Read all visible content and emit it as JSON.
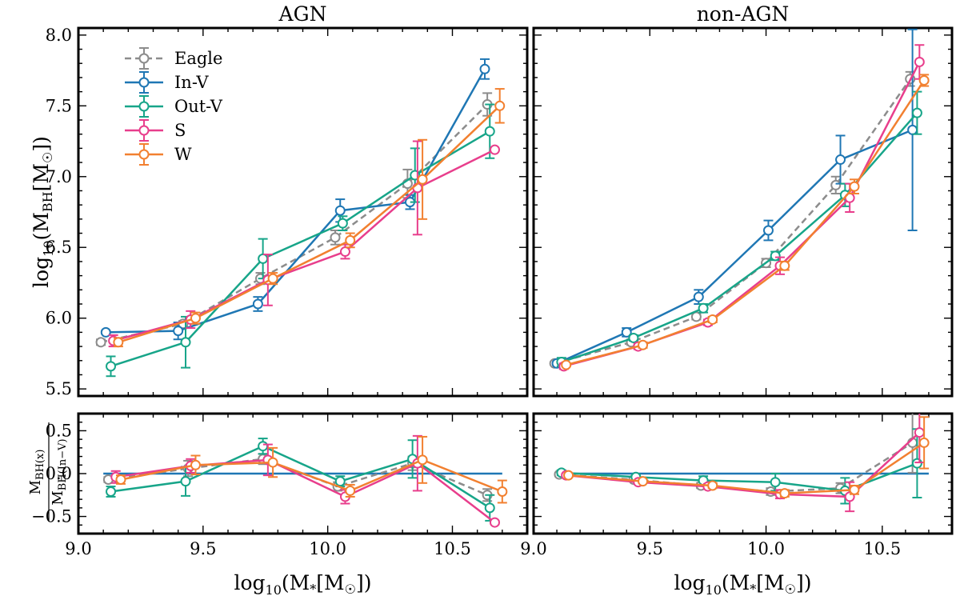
{
  "chart_data": [
    {
      "id": "agn-main",
      "type": "line",
      "title": "AGN",
      "xlabel": "",
      "ylabel": "log10(MBH[M☉])",
      "xlim": [
        9.0,
        10.8
      ],
      "ylim": [
        5.45,
        8.05
      ],
      "xticks": [
        9.0,
        9.5,
        10.0,
        10.5
      ],
      "xtick_labels": [
        "",
        "",
        "",
        ""
      ],
      "yticks": [
        5.5,
        6.0,
        6.5,
        7.0,
        7.5,
        8.0
      ],
      "ytick_labels": [
        "5.5",
        "6.0",
        "6.5",
        "7.0",
        "7.5",
        "8.0"
      ],
      "legend": "top-left",
      "series": [
        {
          "name": "Eagle",
          "color": "#8c8c8c",
          "dashed": true,
          "x": [
            9.09,
            9.42,
            9.73,
            10.03,
            10.32,
            10.64
          ],
          "y": [
            5.83,
            5.96,
            6.28,
            6.57,
            6.95,
            7.51
          ],
          "err": [
            0.02,
            0.02,
            0.04,
            0.05,
            0.1,
            0.08
          ]
        },
        {
          "name": "In-V",
          "color": "#1f77b4",
          "dashed": false,
          "x": [
            9.11,
            9.4,
            9.72,
            10.05,
            10.33,
            10.63
          ],
          "y": [
            5.9,
            5.91,
            6.1,
            6.76,
            6.82,
            7.76
          ],
          "err": [
            0.01,
            0.06,
            0.05,
            0.08,
            0.05,
            0.07
          ]
        },
        {
          "name": "Out-V",
          "color": "#17a589",
          "dashed": false,
          "x": [
            9.13,
            9.43,
            9.74,
            10.06,
            10.35,
            10.65
          ],
          "y": [
            5.66,
            5.83,
            6.42,
            6.67,
            7.01,
            7.32
          ],
          "err": [
            0.07,
            0.18,
            0.14,
            0.05,
            0.19,
            0.19
          ]
        },
        {
          "name": "S",
          "color": "#e83e8c",
          "dashed": false,
          "x": [
            9.14,
            9.45,
            9.76,
            10.07,
            10.36,
            10.67
          ],
          "y": [
            5.84,
            5.99,
            6.27,
            6.47,
            6.92,
            7.19
          ],
          "err": [
            0.04,
            0.06,
            0.18,
            0.05,
            0.33,
            0.01
          ]
        },
        {
          "name": "W",
          "color": "#f28030",
          "dashed": false,
          "x": [
            9.16,
            9.47,
            9.78,
            10.09,
            10.38,
            10.69
          ],
          "y": [
            5.83,
            6.0,
            6.28,
            6.55,
            6.98,
            7.5
          ],
          "err": [
            0.03,
            0.04,
            0.04,
            0.05,
            0.28,
            0.12
          ]
        }
      ]
    },
    {
      "id": "nonagn-main",
      "type": "line",
      "title": "non-AGN",
      "xlabel": "",
      "ylabel": "",
      "xlim": [
        9.0,
        10.8
      ],
      "ylim": [
        5.45,
        8.05
      ],
      "xticks": [
        9.0,
        9.5,
        10.0,
        10.5
      ],
      "xtick_labels": [
        "",
        "",
        "",
        ""
      ],
      "yticks": [
        5.5,
        6.0,
        6.5,
        7.0,
        7.5,
        8.0
      ],
      "ytick_labels": [
        "",
        "",
        "",
        "",
        "",
        ""
      ],
      "legend": "",
      "series": [
        {
          "name": "Eagle",
          "color": "#8c8c8c",
          "dashed": true,
          "x": [
            9.09,
            9.42,
            9.7,
            10.0,
            10.3,
            10.62
          ],
          "y": [
            5.68,
            5.83,
            6.01,
            6.39,
            6.94,
            7.69
          ],
          "err": [
            0.01,
            0.02,
            0.02,
            0.03,
            0.06,
            0.05
          ]
        },
        {
          "name": "In-V",
          "color": "#1f77b4",
          "dashed": false,
          "x": [
            9.1,
            9.4,
            9.71,
            10.01,
            10.32,
            10.63
          ],
          "y": [
            5.68,
            5.9,
            6.15,
            6.62,
            7.12,
            7.33
          ],
          "err": [
            0.01,
            0.03,
            0.05,
            0.07,
            0.17,
            0.71
          ]
        },
        {
          "name": "Out-V",
          "color": "#17a589",
          "dashed": false,
          "x": [
            9.12,
            9.43,
            9.73,
            10.04,
            10.34,
            10.65
          ],
          "y": [
            5.69,
            5.86,
            6.07,
            6.44,
            6.87,
            7.45
          ],
          "err": [
            0.03,
            0.02,
            0.03,
            0.03,
            0.08,
            0.15
          ]
        },
        {
          "name": "S",
          "color": "#e83e8c",
          "dashed": false,
          "x": [
            9.13,
            9.45,
            9.75,
            10.06,
            10.36,
            10.66
          ],
          "y": [
            5.66,
            5.8,
            5.97,
            6.37,
            6.85,
            7.81
          ],
          "err": [
            0.02,
            0.02,
            0.02,
            0.06,
            0.1,
            0.12
          ]
        },
        {
          "name": "W",
          "color": "#f28030",
          "dashed": false,
          "x": [
            9.14,
            9.47,
            9.77,
            10.08,
            10.38,
            10.68
          ],
          "y": [
            5.67,
            5.81,
            5.99,
            6.37,
            6.93,
            7.68
          ],
          "err": [
            0.01,
            0.02,
            0.02,
            0.03,
            0.05,
            0.04
          ]
        }
      ]
    },
    {
      "id": "agn-ratio",
      "type": "line",
      "title": "",
      "xlabel": "log10(M*[M☉])",
      "ylabel": "MBH(x) / MBH(In−V)",
      "xlim": [
        9.0,
        10.8
      ],
      "ylim": [
        -0.7,
        0.7
      ],
      "xticks": [
        9.0,
        9.5,
        10.0,
        10.5
      ],
      "xtick_labels": [
        "9.0",
        "9.5",
        "10.0",
        "10.5"
      ],
      "yticks": [
        -0.5,
        0.0,
        0.5
      ],
      "ytick_labels": [
        "−0.5",
        "0.0",
        "0.5"
      ],
      "legend": "",
      "series": [
        {
          "name": "In-V",
          "color": "#1f77b4",
          "dashed": false,
          "markers": false,
          "x": [
            9.1,
            10.7
          ],
          "y": [
            0.0,
            0.0
          ],
          "err": [
            0,
            0
          ]
        },
        {
          "name": "Eagle",
          "color": "#8c8c8c",
          "dashed": true,
          "x": [
            9.12,
            9.44,
            9.74,
            10.04,
            10.34,
            10.64
          ],
          "y": [
            -0.07,
            0.06,
            0.17,
            -0.15,
            0.12,
            -0.25
          ],
          "err": [
            0.03,
            0.09,
            0.06,
            0.05,
            0.08,
            0.07
          ]
        },
        {
          "name": "Out-V",
          "color": "#17a589",
          "dashed": false,
          "x": [
            9.13,
            9.43,
            9.74,
            10.05,
            10.34,
            10.65
          ],
          "y": [
            -0.21,
            -0.09,
            0.32,
            -0.09,
            0.17,
            -0.4
          ],
          "err": [
            0.06,
            0.17,
            0.09,
            0.06,
            0.22,
            0.15
          ]
        },
        {
          "name": "S",
          "color": "#e83e8c",
          "dashed": false,
          "x": [
            9.15,
            9.45,
            9.76,
            10.07,
            10.36,
            10.67
          ],
          "y": [
            -0.04,
            0.09,
            0.16,
            -0.27,
            0.12,
            -0.57
          ],
          "err": [
            0.07,
            0.08,
            0.18,
            0.08,
            0.32,
            0.02
          ]
        },
        {
          "name": "W",
          "color": "#f28030",
          "dashed": false,
          "x": [
            9.17,
            9.47,
            9.78,
            10.09,
            10.38,
            10.7
          ],
          "y": [
            -0.07,
            0.1,
            0.13,
            -0.2,
            0.16,
            -0.21
          ],
          "err": [
            0.05,
            0.11,
            0.17,
            0.07,
            0.27,
            0.13
          ]
        }
      ]
    },
    {
      "id": "nonagn-ratio",
      "type": "line",
      "title": "",
      "xlabel": "log10(M*[M☉])",
      "ylabel": "",
      "xlim": [
        9.0,
        10.8
      ],
      "ylim": [
        -0.7,
        0.7
      ],
      "xticks": [
        9.0,
        9.5,
        10.0,
        10.5
      ],
      "xtick_labels": [
        "9.0",
        "9.5",
        "10.0",
        "10.5"
      ],
      "yticks": [
        -0.5,
        0.0,
        0.5
      ],
      "ytick_labels": [
        "",
        "",
        ""
      ],
      "legend": "",
      "series": [
        {
          "name": "In-V",
          "color": "#1f77b4",
          "dashed": false,
          "markers": false,
          "x": [
            9.1,
            10.7
          ],
          "y": [
            0.0,
            0.0
          ],
          "err": [
            0,
            0
          ]
        },
        {
          "name": "Eagle",
          "color": "#8c8c8c",
          "dashed": true,
          "x": [
            9.11,
            9.43,
            9.72,
            10.02,
            10.32,
            10.63
          ],
          "y": [
            -0.01,
            -0.07,
            -0.14,
            -0.21,
            -0.17,
            0.36
          ],
          "err": [
            0.02,
            0.02,
            0.03,
            0.04,
            0.06,
            0.35
          ]
        },
        {
          "name": "Out-V",
          "color": "#17a589",
          "dashed": false,
          "x": [
            9.12,
            9.44,
            9.73,
            10.04,
            10.34,
            10.65
          ],
          "y": [
            0.01,
            -0.04,
            -0.08,
            -0.1,
            -0.2,
            0.12
          ],
          "err": [
            0.03,
            0.03,
            0.05,
            0.1,
            0.15,
            0.4
          ]
        },
        {
          "name": "S",
          "color": "#e83e8c",
          "dashed": false,
          "x": [
            9.14,
            9.45,
            9.75,
            10.06,
            10.36,
            10.66
          ],
          "y": [
            -0.02,
            -0.1,
            -0.15,
            -0.24,
            -0.27,
            0.48
          ],
          "err": [
            0.02,
            0.02,
            0.03,
            0.05,
            0.17,
            0.35
          ]
        },
        {
          "name": "W",
          "color": "#f28030",
          "dashed": false,
          "x": [
            9.15,
            9.47,
            9.77,
            10.08,
            10.38,
            10.68
          ],
          "y": [
            -0.02,
            -0.09,
            -0.14,
            -0.23,
            -0.19,
            0.36
          ],
          "err": [
            0.02,
            0.02,
            0.03,
            0.04,
            0.05,
            0.3
          ]
        }
      ]
    }
  ]
}
